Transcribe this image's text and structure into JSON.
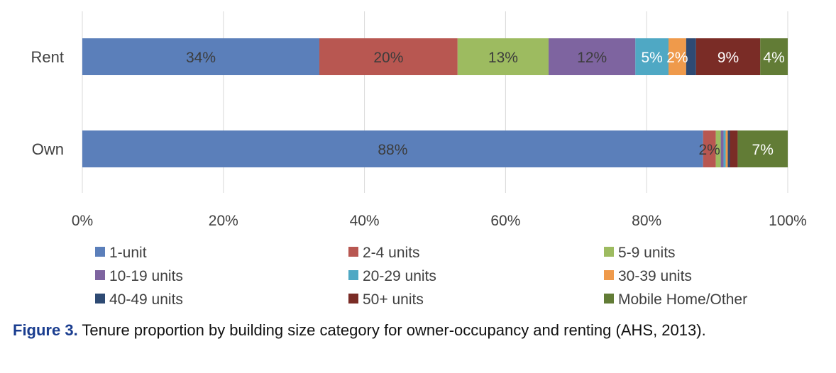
{
  "chart_data": {
    "type": "bar",
    "orientation": "horizontal",
    "stacked": true,
    "categories": [
      "Rent",
      "Own"
    ],
    "xlim": [
      0,
      100
    ],
    "x_ticks": [
      "0%",
      "20%",
      "40%",
      "60%",
      "80%",
      "100%"
    ],
    "grid": "vertical",
    "legend_position": "bottom",
    "series": [
      {
        "name": "1-unit",
        "color": "#5b7fba",
        "values": [
          33.6,
          88.0
        ],
        "labels": [
          "34%",
          "88%"
        ],
        "label_color": "#3c3c3c"
      },
      {
        "name": "2-4 units",
        "color": "#b85751",
        "values": [
          19.6,
          1.8
        ],
        "labels": [
          "20%",
          "2%"
        ],
        "label_color": "#3c3c3c"
      },
      {
        "name": "5-9 units",
        "color": "#9dbb60",
        "values": [
          12.9,
          0.7
        ],
        "labels": [
          "13%",
          ""
        ],
        "label_color": "#3c3c3c"
      },
      {
        "name": "10-19 units",
        "color": "#7e64a0",
        "values": [
          12.3,
          0.4
        ],
        "labels": [
          "12%",
          ""
        ],
        "label_color": "#3c3c3c"
      },
      {
        "name": "20-29 units",
        "color": "#4fa8c4",
        "values": [
          4.7,
          0.3
        ],
        "labels": [
          "5%",
          ""
        ],
        "label_color": "#ffffff"
      },
      {
        "name": "30-39 units",
        "color": "#ef9a4b",
        "values": [
          2.5,
          0.3
        ],
        "labels": [
          "2%",
          ""
        ],
        "label_color": "#ffffff"
      },
      {
        "name": "40-49 units",
        "color": "#2e4a73",
        "values": [
          1.4,
          0.3
        ],
        "labels": [
          "",
          ""
        ],
        "label_color": "#ffffff"
      },
      {
        "name": "50+ units",
        "color": "#7a2c26",
        "values": [
          9.1,
          1.1
        ],
        "labels": [
          "9%",
          ""
        ],
        "label_color": "#ffffff"
      },
      {
        "name": "Mobile Home/Other",
        "color": "#627c36",
        "values": [
          3.9,
          7.1
        ],
        "labels": [
          "4%",
          "7%"
        ],
        "label_color": "#ffffff"
      }
    ]
  },
  "caption": {
    "figure_label": "Figure 3.",
    "text": "Tenure proportion by building size category for owner-occupancy and renting (AHS, 2013)."
  }
}
